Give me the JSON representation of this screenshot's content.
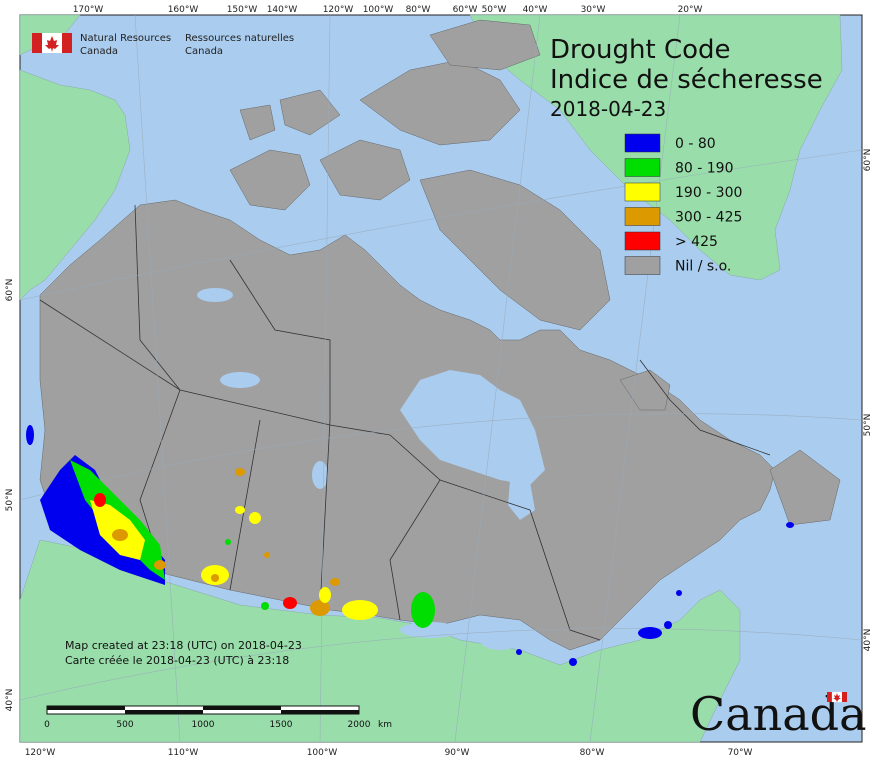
{
  "title": {
    "line1": "Drought Code",
    "line2": "Indice de sécheresse",
    "date": "2018-04-23"
  },
  "agency": {
    "en_line1": "Natural Resources",
    "en_line2": "Canada",
    "fr_line1": "Ressources naturelles",
    "fr_line2": "Canada"
  },
  "legend": [
    {
      "label": "0 - 80",
      "color": "#0000ee"
    },
    {
      "label": "80 - 190",
      "color": "#00dd00"
    },
    {
      "label": "190 - 300",
      "color": "#ffff00"
    },
    {
      "label": "300 - 425",
      "color": "#dd9900"
    },
    {
      "label": "> 425",
      "color": "#ff0000"
    },
    {
      "label": "Nil / s.o.",
      "color": "#a0a0a0"
    }
  ],
  "notes": {
    "line1": "Map created at 23:18 (UTC) on 2018-04-23",
    "line2": "Carte créée le 2018-04-23 (UTC) à 23:18"
  },
  "scale_bar": {
    "ticks": [
      "0",
      "500",
      "1000",
      "1500",
      "2000"
    ],
    "unit": "km"
  },
  "graticule": {
    "top": [
      "170°W",
      "160°W",
      "150°W",
      "140°W",
      "120°W",
      "100°W",
      "80°W",
      "60°W",
      "50°W",
      "40°W",
      "30°W",
      "20°W"
    ],
    "bottom": [
      "120°W",
      "110°W",
      "100°W",
      "90°W",
      "80°W",
      "70°W"
    ],
    "left": [
      "60°N",
      "50°N",
      "40°N"
    ],
    "right": [
      "60°N",
      "50°N",
      "40°N"
    ]
  },
  "wordmark": "Canada",
  "colors": {
    "ocean": "#aaccee",
    "land_foreign": "#99ddaa",
    "land_canada": "#a0a0a0",
    "border": "#333333"
  }
}
